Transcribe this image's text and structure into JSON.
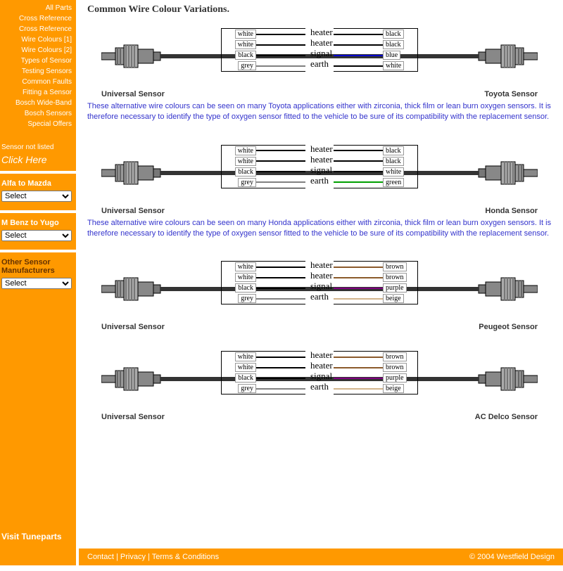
{
  "sidebar": {
    "nav": [
      "All Parts",
      "Cross Reference",
      "Cross Reference",
      "Wire Colours [1]",
      "Wire Colours [2]",
      "Types of Sensor",
      "Testing Sensors",
      "Common Faults",
      "Fitting a Sensor",
      "Bosch Wide-Band",
      "Bosch Sensors",
      "Special Offers"
    ],
    "not_listed": "Sensor not listed",
    "click_here": "Click Here",
    "sec1": "Alfa to Mazda",
    "sec2": "M Benz to Yugo",
    "sec3": "Other Sensor Manufacturers",
    "select_placeholder": "Select",
    "visit": "Visit Tuneparts"
  },
  "title": "Common Wire Colour Variations.",
  "mid_labels": [
    "heater",
    "heater",
    "signal",
    "earth"
  ],
  "universal": {
    "name": "Universal Sensor",
    "wires": [
      {
        "label": "white",
        "color": "#ffffff",
        "border": "#000"
      },
      {
        "label": "white",
        "color": "#ffffff",
        "border": "#000"
      },
      {
        "label": "black",
        "color": "#000000"
      },
      {
        "label": "grey",
        "color": "#808080"
      }
    ]
  },
  "variants": [
    {
      "name": "Toyota Sensor",
      "wires": [
        {
          "label": "black",
          "color": "#000000"
        },
        {
          "label": "black",
          "color": "#000000"
        },
        {
          "label": "blue",
          "color": "#0000cc"
        },
        {
          "label": "white",
          "color": "#ffffff",
          "border": "#000"
        }
      ],
      "desc": "These alternative wire colours can be seen on many Toyota applications either with zirconia, thick film or lean burn oxygen sensors. It is therefore necessary to identify the type of oxygen sensor fitted to the vehicle to be sure of its compatibility with the replacement sensor."
    },
    {
      "name": "Honda Sensor",
      "wires": [
        {
          "label": "black",
          "color": "#000000"
        },
        {
          "label": "black",
          "color": "#000000"
        },
        {
          "label": "white",
          "color": "#ffffff",
          "border": "#000"
        },
        {
          "label": "green",
          "color": "#00a000"
        }
      ],
      "desc": "These alternative wire colours can be seen on many Honda applications either with zirconia, thick film or lean burn oxygen sensors. It is therefore necessary to identify the type of oxygen sensor fitted to the vehicle to be sure of its compatibility with the replacement sensor."
    },
    {
      "name": "Peugeot Sensor",
      "wires": [
        {
          "label": "brown",
          "color": "#8b5a2b"
        },
        {
          "label": "brown",
          "color": "#8b5a2b"
        },
        {
          "label": "purple",
          "color": "#800080"
        },
        {
          "label": "beige",
          "color": "#d2b48c"
        }
      ],
      "desc": ""
    },
    {
      "name": "AC Delco Sensor",
      "wires": [
        {
          "label": "brown",
          "color": "#8b5a2b"
        },
        {
          "label": "brown",
          "color": "#8b5a2b"
        },
        {
          "label": "purple",
          "color": "#800080"
        },
        {
          "label": "beige",
          "color": "#d2b48c"
        }
      ],
      "desc": ""
    }
  ],
  "footer": {
    "links": [
      "Contact",
      "Privacy",
      "Terms & Conditions"
    ],
    "copy": "© 2004 Westfield Design"
  }
}
